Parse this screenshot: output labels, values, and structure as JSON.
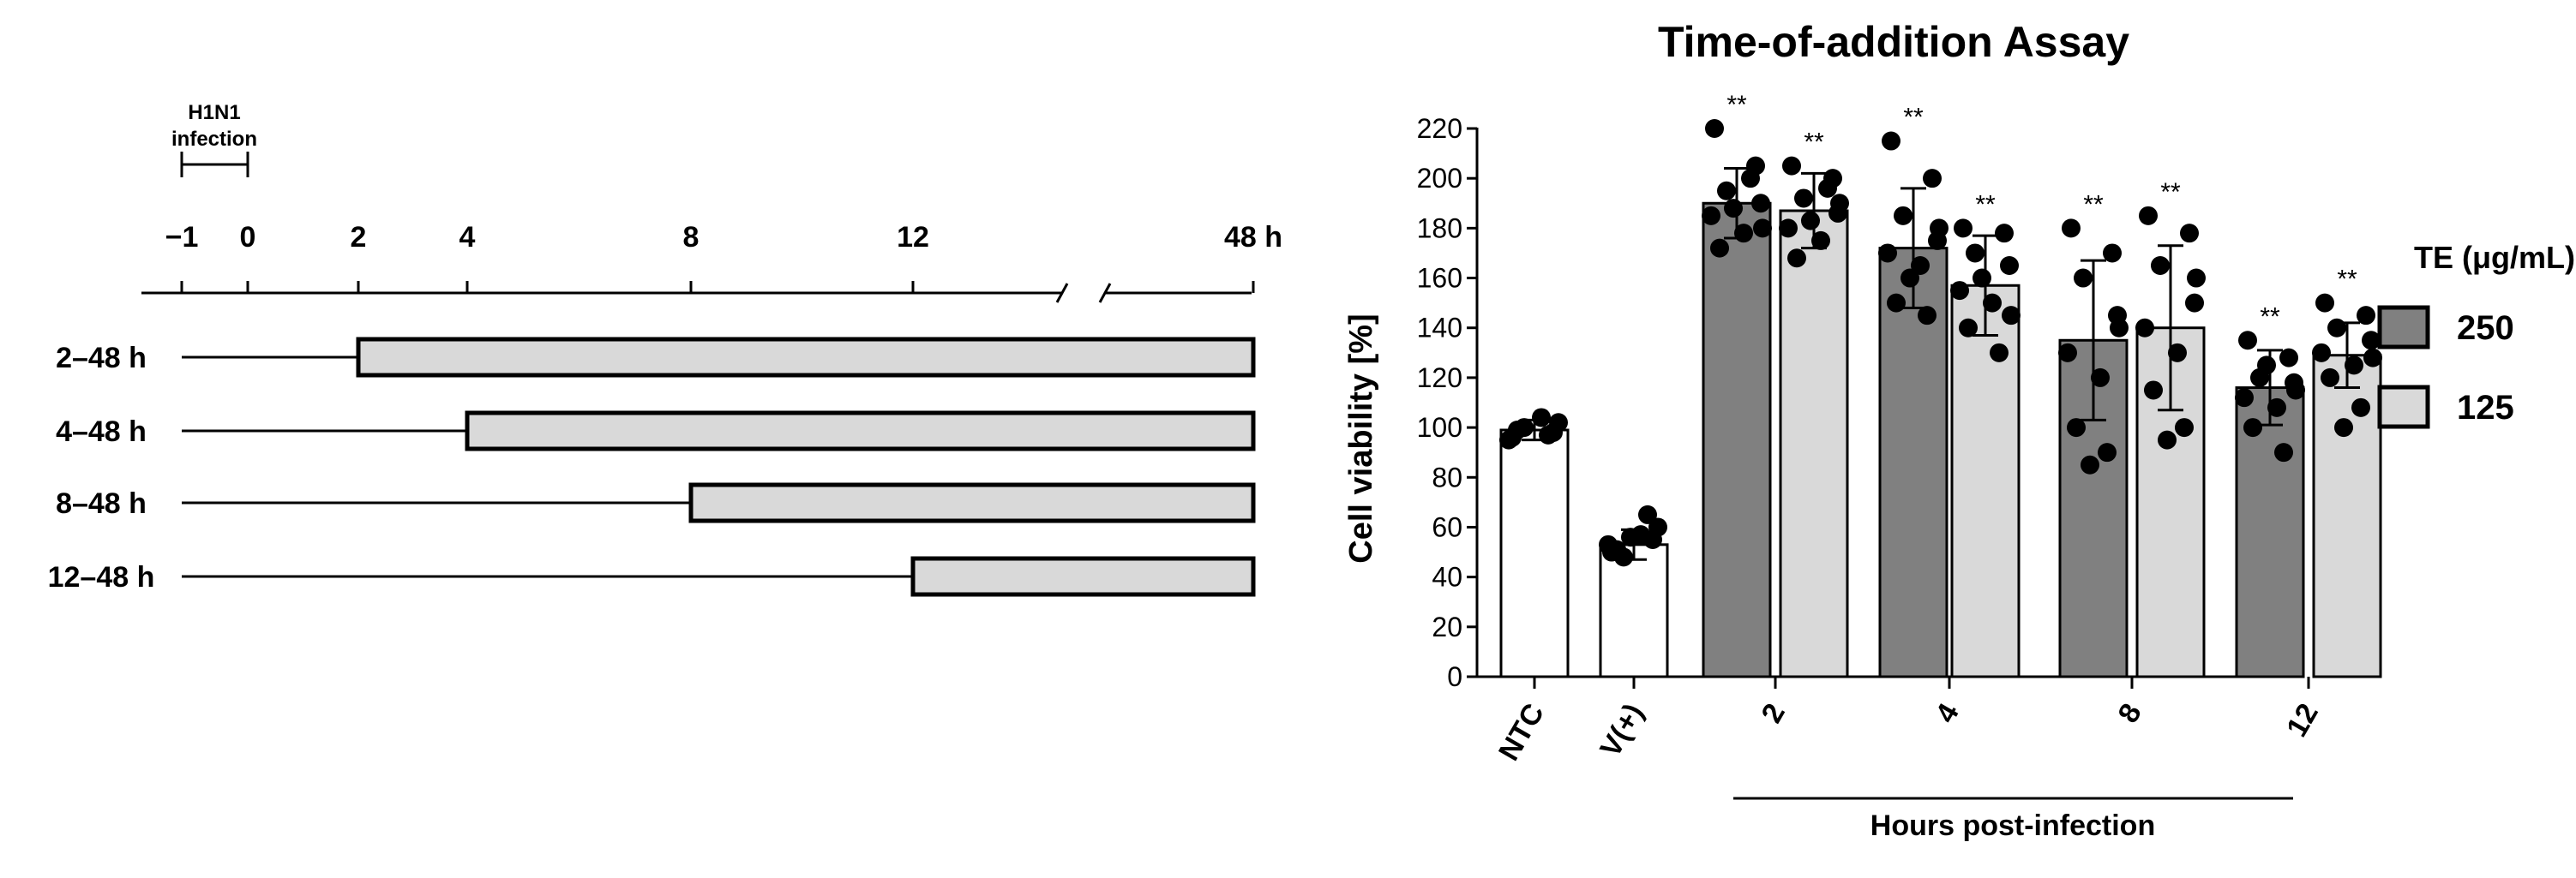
{
  "timeline": {
    "infection_label_line1": "H1N1",
    "infection_label_line2": "infection",
    "ticks": [
      {
        "value": -1,
        "label": "−1"
      },
      {
        "value": 0,
        "label": "0"
      },
      {
        "value": 2,
        "label": "2"
      },
      {
        "value": 4,
        "label": "4"
      },
      {
        "value": 8,
        "label": "8"
      },
      {
        "value": 12,
        "label": "12"
      },
      {
        "value": 48,
        "label": "48 h"
      }
    ],
    "treatments": [
      {
        "label": "2–48 h",
        "start": 2,
        "end": 48
      },
      {
        "label": "4–48 h",
        "start": 4,
        "end": 48
      },
      {
        "label": "8–48 h",
        "start": 8,
        "end": 48
      },
      {
        "label": "12–48 h",
        "start": 12,
        "end": 48
      }
    ]
  },
  "chart_data": {
    "type": "bar",
    "title": "Time-of-addition Assay",
    "ylabel": "Cell viability [%]",
    "xlabel": "Hours post-infection",
    "ylim": [
      0,
      220
    ],
    "yticks": [
      0,
      20,
      40,
      60,
      80,
      100,
      120,
      140,
      160,
      180,
      200,
      220
    ],
    "legend": {
      "title": "TE (μg/mL)",
      "placement": "right",
      "entries": [
        {
          "label": "250",
          "color": "#808080"
        },
        {
          "label": "125",
          "color": "#d9d9d9"
        }
      ]
    },
    "colors": {
      "control": "#ffffff",
      "dose_250": "#808080",
      "dose_125": "#d9d9d9"
    },
    "categories": [
      "NTC",
      "V(+)",
      "2",
      "4",
      "8",
      "12"
    ],
    "bars": [
      {
        "category": "NTC",
        "series": "control",
        "value": 99,
        "sd": 4,
        "sig": "",
        "points": [
          96,
          98,
          100,
          102,
          95,
          104,
          99,
          97
        ]
      },
      {
        "category": "V(+)",
        "series": "control",
        "value": 53,
        "sd": 6,
        "sig": "",
        "points": [
          50,
          55,
          48,
          60,
          53,
          57,
          51,
          65,
          56
        ]
      },
      {
        "category": "2",
        "series": "250",
        "value": 190,
        "sd": 14,
        "sig": "**",
        "points": [
          220,
          205,
          195,
          190,
          185,
          178,
          172,
          200,
          188,
          180
        ]
      },
      {
        "category": "2",
        "series": "125",
        "value": 187,
        "sd": 15,
        "sig": "**",
        "points": [
          205,
          200,
          192,
          186,
          180,
          175,
          168,
          196,
          183,
          190
        ]
      },
      {
        "category": "4",
        "series": "250",
        "value": 172,
        "sd": 24,
        "sig": "**",
        "points": [
          215,
          200,
          185,
          175,
          170,
          165,
          150,
          145,
          160,
          180
        ]
      },
      {
        "category": "4",
        "series": "125",
        "value": 157,
        "sd": 20,
        "sig": "**",
        "points": [
          180,
          178,
          170,
          165,
          155,
          150,
          140,
          130,
          160,
          145
        ]
      },
      {
        "category": "8",
        "series": "250",
        "value": 135,
        "sd": 32,
        "sig": "**",
        "points": [
          180,
          170,
          160,
          145,
          130,
          120,
          100,
          90,
          85,
          140
        ]
      },
      {
        "category": "8",
        "series": "125",
        "value": 140,
        "sd": 33,
        "sig": "**",
        "points": [
          185,
          178,
          165,
          150,
          140,
          130,
          115,
          100,
          95,
          160
        ]
      },
      {
        "category": "12",
        "series": "250",
        "value": 116,
        "sd": 15,
        "sig": "**",
        "points": [
          135,
          128,
          120,
          118,
          112,
          108,
          100,
          90,
          125,
          115
        ]
      },
      {
        "category": "12",
        "series": "125",
        "value": 129,
        "sd": 13,
        "sig": "**",
        "points": [
          150,
          145,
          140,
          135,
          130,
          125,
          120,
          108,
          100,
          128
        ]
      }
    ]
  }
}
